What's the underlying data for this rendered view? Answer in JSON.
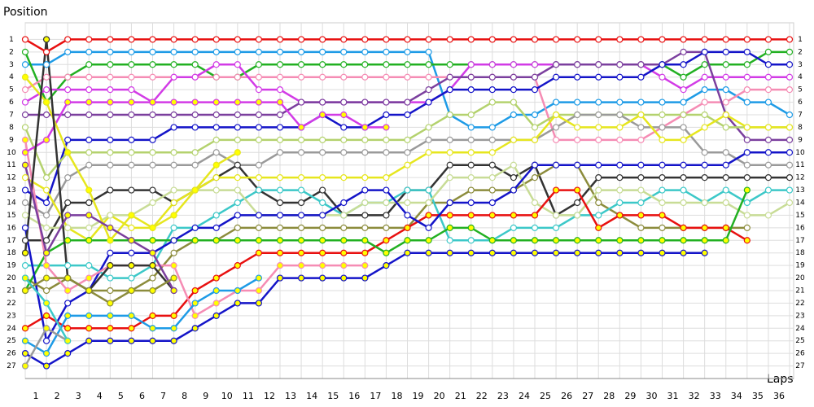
{
  "chart_data": {
    "type": "lapchart",
    "y_label": "Position",
    "x_label": "Laps",
    "x": [
      0,
      1,
      2,
      3,
      4,
      5,
      6,
      7,
      8,
      9,
      10,
      11,
      12,
      13,
      14,
      15,
      16,
      17,
      18,
      19,
      20,
      21,
      22,
      23,
      24,
      25,
      26,
      27,
      28,
      29,
      30,
      31,
      32,
      33,
      34,
      35,
      36
    ],
    "xlim": [
      0,
      36
    ],
    "xticks": [
      1,
      2,
      3,
      4,
      5,
      6,
      7,
      8,
      9,
      10,
      11,
      12,
      13,
      14,
      15,
      16,
      17,
      18,
      19,
      20,
      21,
      22,
      23,
      24,
      25,
      26,
      27,
      28,
      29,
      30,
      31,
      32,
      33,
      34,
      35,
      36
    ],
    "ylim": [
      0,
      28
    ],
    "yticks": [
      1,
      2,
      3,
      4,
      5,
      6,
      7,
      8,
      9,
      10,
      11,
      12,
      13,
      14,
      15,
      16,
      17,
      18,
      19,
      20,
      21,
      22,
      23,
      24,
      25,
      26,
      27
    ],
    "grid": true,
    "y_inverted": true,
    "series": [
      {
        "color": "#e81010",
        "marker_color": "#ffffff",
        "values": [
          1,
          2,
          1,
          1,
          1,
          1,
          1,
          1,
          1,
          1,
          1,
          1,
          1,
          1,
          1,
          1,
          1,
          1,
          1,
          1,
          1,
          1,
          1,
          1,
          1,
          1,
          1,
          1,
          1,
          1,
          1,
          1,
          1,
          1,
          1,
          1,
          1
        ]
      },
      {
        "color": "#1e9be6",
        "marker_color": "#ffffff",
        "values": [
          3,
          3,
          2,
          2,
          2,
          2,
          2,
          2,
          2,
          2,
          2,
          2,
          2,
          2,
          2,
          2,
          2,
          2,
          2,
          2,
          7,
          8,
          8,
          7,
          7,
          6,
          6,
          6,
          6,
          6,
          6,
          6,
          5,
          5,
          6,
          6,
          7
        ]
      },
      {
        "color": "#22b022",
        "marker_color": "#ffffff",
        "values": [
          2,
          6,
          4,
          3,
          3,
          3,
          3,
          3,
          3,
          4,
          4,
          3,
          3,
          3,
          3,
          3,
          3,
          3,
          3,
          3,
          3,
          3,
          3,
          3,
          3,
          3,
          3,
          3,
          3,
          3,
          3,
          4,
          3,
          3,
          3,
          2,
          2
        ]
      },
      {
        "color": "#f58cb4",
        "marker_color": "#ffffff",
        "values": [
          5,
          4,
          4,
          4,
          4,
          4,
          4,
          4,
          4,
          4,
          4,
          4,
          4,
          4,
          4,
          4,
          4,
          4,
          4,
          4,
          4,
          4,
          4,
          4,
          4,
          9,
          9,
          9,
          9,
          9,
          8,
          7,
          6,
          6,
          5,
          5,
          5
        ]
      },
      {
        "color": "#d23be6",
        "marker_color": "#ffffff",
        "values": [
          6,
          5,
          5,
          5,
          5,
          5,
          6,
          4,
          4,
          3,
          3,
          5,
          5,
          6,
          6,
          6,
          6,
          6,
          6,
          6,
          5,
          3,
          3,
          3,
          3,
          3,
          3,
          3,
          3,
          3,
          4,
          5,
          4,
          4,
          4,
          4,
          4
        ]
      },
      {
        "color": "#7b3f9e",
        "marker_color": "#ffffff",
        "values": [
          7,
          7,
          7,
          7,
          7,
          7,
          7,
          7,
          7,
          7,
          7,
          7,
          7,
          6,
          6,
          6,
          6,
          6,
          6,
          5,
          4,
          4,
          4,
          4,
          4,
          3,
          3,
          3,
          3,
          3,
          3,
          2,
          2,
          7,
          9,
          9,
          9
        ]
      },
      {
        "color": "#1414c8",
        "marker_color": "#ffffff",
        "values": [
          13,
          14,
          9,
          9,
          9,
          9,
          9,
          8,
          8,
          8,
          8,
          8,
          8,
          8,
          7,
          8,
          8,
          7,
          7,
          6,
          5,
          5,
          5,
          5,
          5,
          4,
          4,
          4,
          4,
          4,
          3,
          3,
          2,
          2,
          2,
          3,
          3
        ]
      },
      {
        "color": "#b4d26e",
        "marker_color": "#ffffff",
        "values": [
          8,
          12,
          10,
          10,
          10,
          10,
          10,
          10,
          10,
          9,
          9,
          9,
          9,
          9,
          9,
          9,
          9,
          9,
          9,
          8,
          7,
          7,
          6,
          6,
          8,
          7,
          7,
          7,
          7,
          7,
          7,
          7,
          7,
          8,
          8,
          8,
          8
        ]
      },
      {
        "color": "#9a9a9a",
        "marker_color": "#ffffff",
        "values": [
          14,
          15,
          12,
          11,
          11,
          11,
          11,
          11,
          11,
          10,
          11,
          11,
          10,
          10,
          10,
          10,
          10,
          10,
          10,
          9,
          9,
          9,
          9,
          9,
          9,
          8,
          7,
          7,
          7,
          8,
          8,
          8,
          10,
          10,
          11,
          11,
          11
        ]
      },
      {
        "color": "#333333",
        "marker_color": "#ffffff",
        "values": [
          17,
          17,
          14,
          14,
          13,
          13,
          13,
          14,
          13,
          12,
          11,
          13,
          14,
          14,
          13,
          15,
          15,
          15,
          13,
          13,
          11,
          11,
          11,
          12,
          11,
          15,
          14,
          12,
          12,
          12,
          12,
          12,
          12,
          12,
          12,
          12,
          12
        ]
      },
      {
        "color": "#e6e61e",
        "marker_color": "#ffffff",
        "values": [
          12,
          13,
          16,
          17,
          15,
          16,
          16,
          14,
          13,
          12,
          12,
          12,
          12,
          12,
          12,
          12,
          12,
          12,
          11,
          10,
          10,
          10,
          10,
          9,
          9,
          7,
          8,
          8,
          8,
          7,
          9,
          9,
          8,
          7,
          8,
          8,
          8
        ]
      },
      {
        "color": "#8c8c3c",
        "marker_color": "#ffffff",
        "values": [
          20,
          21,
          20,
          21,
          21,
          21,
          20,
          18,
          17,
          17,
          16,
          16,
          16,
          16,
          16,
          16,
          16,
          16,
          16,
          14,
          14,
          13,
          13,
          13,
          12,
          11,
          11,
          14,
          15,
          16,
          16,
          16,
          16,
          16,
          16,
          null,
          null
        ]
      },
      {
        "color": "#3cc8c8",
        "marker_color": "#ffffff",
        "values": [
          19,
          19,
          19,
          19,
          20,
          20,
          19,
          16,
          16,
          15,
          14,
          13,
          13,
          13,
          14,
          15,
          14,
          14,
          13,
          13,
          17,
          17,
          17,
          16,
          16,
          16,
          15,
          15,
          14,
          14,
          13,
          13,
          14,
          13,
          14,
          13,
          13
        ]
      },
      {
        "color": "#c8dc96",
        "marker_color": "#ffffff",
        "values": [
          15,
          16,
          16,
          16,
          15,
          15,
          14,
          13,
          13,
          13,
          13,
          15,
          15,
          15,
          15,
          15,
          14,
          14,
          14,
          14,
          12,
          12,
          12,
          11,
          14,
          15,
          15,
          13,
          13,
          13,
          14,
          14,
          14,
          14,
          15,
          15,
          14
        ]
      },
      {
        "color": "#e81010",
        "marker_color": "#ffff00",
        "values": [
          24,
          23,
          24,
          24,
          24,
          24,
          23,
          23,
          21,
          20,
          19,
          18,
          18,
          18,
          18,
          18,
          18,
          17,
          16,
          15,
          15,
          15,
          15,
          15,
          15,
          13,
          13,
          16,
          15,
          15,
          15,
          16,
          16,
          16,
          17,
          null,
          null
        ]
      },
      {
        "color": "#22b022",
        "marker_color": "#ffff00",
        "values": [
          21,
          18,
          17,
          17,
          17,
          17,
          17,
          17,
          17,
          17,
          17,
          17,
          17,
          17,
          17,
          17,
          17,
          18,
          17,
          17,
          16,
          16,
          17,
          17,
          17,
          17,
          17,
          17,
          17,
          17,
          17,
          17,
          17,
          17,
          13,
          null,
          null
        ]
      },
      {
        "color": "#1414c8",
        "marker_color": "#ffff00",
        "values": [
          26,
          27,
          26,
          25,
          25,
          25,
          25,
          25,
          24,
          23,
          22,
          22,
          20,
          20,
          20,
          20,
          20,
          19,
          18,
          18,
          18,
          18,
          18,
          18,
          18,
          18,
          18,
          18,
          18,
          18,
          18,
          18,
          18,
          null,
          null,
          null,
          null
        ]
      },
      {
        "color": "#1414c8",
        "marker_color": "#ffffff",
        "values": [
          16,
          25,
          22,
          21,
          18,
          18,
          18,
          17,
          16,
          16,
          15,
          15,
          15,
          15,
          15,
          14,
          13,
          13,
          15,
          16,
          14,
          14,
          14,
          13,
          11,
          11,
          11,
          11,
          11,
          11,
          11,
          11,
          11,
          11,
          10,
          10,
          10
        ]
      },
      {
        "color": "#f58cb4",
        "marker_color": "#ffff00",
        "values": [
          9,
          19,
          21,
          20,
          19,
          19,
          19,
          19,
          23,
          22,
          21,
          21,
          19,
          19,
          19,
          19,
          19,
          null,
          null,
          null,
          null,
          null,
          null,
          null,
          null,
          null,
          null,
          null,
          null,
          null,
          null,
          null,
          null,
          null,
          null,
          null,
          null
        ]
      },
      {
        "color": "#1e9be6",
        "marker_color": "#ffff00",
        "values": [
          25,
          26,
          23,
          23,
          23,
          23,
          24,
          24,
          22,
          21,
          21,
          20,
          null,
          null,
          null,
          null,
          null,
          null,
          null,
          null,
          null,
          null,
          null,
          null,
          null,
          null,
          null,
          null,
          null,
          null,
          null,
          null,
          null,
          null,
          null,
          null,
          null
        ]
      },
      {
        "color": "#d23be6",
        "marker_color": "#ffff00",
        "values": [
          10,
          9,
          6,
          6,
          6,
          6,
          6,
          6,
          6,
          6,
          6,
          6,
          6,
          8,
          7,
          7,
          8,
          8,
          null,
          null,
          null,
          null,
          null,
          null,
          null,
          null,
          null,
          null,
          null,
          null,
          null,
          null,
          null,
          null,
          null,
          null,
          null
        ]
      },
      {
        "color": "#e6e61e",
        "marker_color": "#ffff00",
        "values": [
          4,
          6,
          10,
          13,
          17,
          15,
          16,
          15,
          13,
          11,
          10,
          null,
          null,
          null,
          null,
          null,
          null,
          null,
          null,
          null,
          null,
          null,
          null,
          null,
          null,
          null,
          null,
          null,
          null,
          null,
          null,
          null,
          null,
          null,
          null,
          null,
          null
        ]
      },
      {
        "color": "#333333",
        "marker_color": "#ffff00",
        "values": [
          18,
          1,
          20,
          21,
          19,
          19,
          19,
          21,
          null,
          null,
          null,
          null,
          null,
          null,
          null,
          null,
          null,
          null,
          null,
          null,
          null,
          null,
          null,
          null,
          null,
          null,
          null,
          null,
          null,
          null,
          null,
          null,
          null,
          null,
          null,
          null,
          null
        ]
      },
      {
        "color": "#7b3f9e",
        "marker_color": "#ffff00",
        "values": [
          11,
          18,
          15,
          15,
          16,
          17,
          18,
          21,
          null,
          null,
          null,
          null,
          null,
          null,
          null,
          null,
          null,
          null,
          null,
          null,
          null,
          null,
          null,
          null,
          null,
          null,
          null,
          null,
          null,
          null,
          null,
          null,
          null,
          null,
          null,
          null,
          null
        ]
      },
      {
        "color": "#9a9a9a",
        "marker_color": "#ffff00",
        "values": [
          27,
          24,
          25,
          null,
          null,
          null,
          null,
          null,
          null,
          null,
          null,
          null,
          null,
          null,
          null,
          null,
          null,
          null,
          null,
          null,
          null,
          null,
          null,
          null,
          null,
          null,
          null,
          null,
          null,
          null,
          null,
          null,
          null,
          null,
          null,
          null,
          null
        ]
      },
      {
        "color": "#8c8c3c",
        "marker_color": "#ffff00",
        "values": [
          21,
          20,
          20,
          21,
          22,
          21,
          21,
          20,
          null,
          null,
          null,
          null,
          null,
          null,
          null,
          null,
          null,
          null,
          null,
          null,
          null,
          null,
          null,
          null,
          null,
          null,
          null,
          null,
          null,
          null,
          null,
          null,
          null,
          null,
          null,
          null,
          null
        ]
      },
      {
        "color": "#3cc8c8",
        "marker_color": "#ffff00",
        "values": [
          20,
          22,
          25,
          null,
          null,
          null,
          null,
          null,
          null,
          null,
          null,
          null,
          null,
          null,
          null,
          null,
          null,
          null,
          null,
          null,
          null,
          null,
          null,
          null,
          null,
          null,
          null,
          null,
          null,
          null,
          null,
          null,
          null,
          null,
          null,
          null,
          null
        ]
      }
    ]
  }
}
